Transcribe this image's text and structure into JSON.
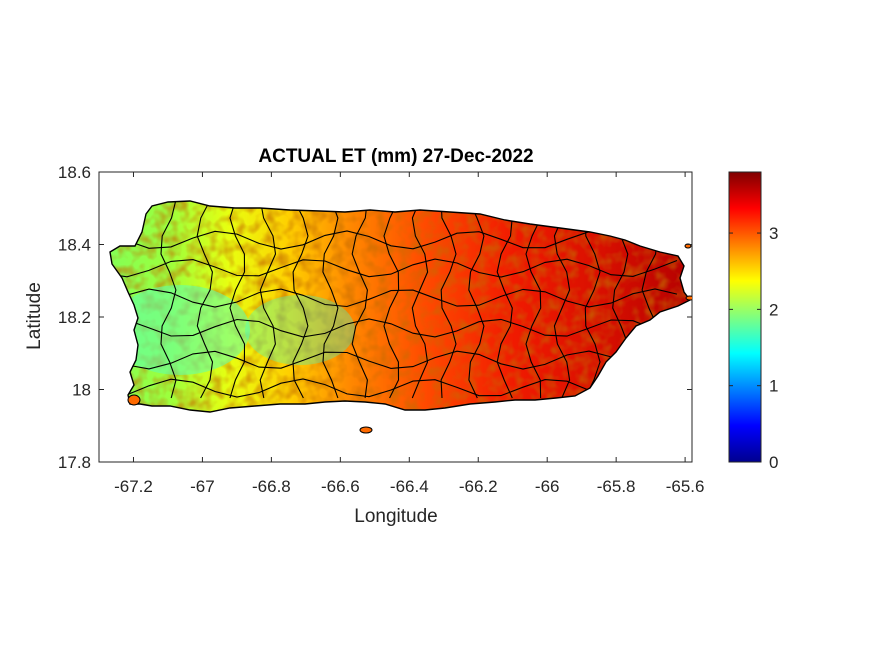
{
  "chart_data": {
    "type": "heatmap",
    "title": "ACTUAL ET (mm) 27-Dec-2022",
    "xlabel": "Longitude",
    "ylabel": "Latitude",
    "xlim": [
      -67.3,
      -65.58
    ],
    "ylim": [
      17.8,
      18.6
    ],
    "xticks": [
      -67.2,
      -67,
      -66.8,
      -66.6,
      -66.4,
      -66.2,
      -66,
      -65.8,
      -65.6
    ],
    "xtick_labels": [
      "-67.2",
      "-67",
      "-66.8",
      "-66.6",
      "-66.4",
      "-66.2",
      "-66",
      "-65.8",
      "-65.6"
    ],
    "yticks": [
      17.8,
      18,
      18.2,
      18.4,
      18.6
    ],
    "ytick_labels": [
      "17.8",
      "18",
      "18.2",
      "18.4",
      "18.6"
    ],
    "colorbar": {
      "colormap": "jet",
      "range": [
        0,
        3.8
      ],
      "ticks": [
        0,
        1,
        2,
        3
      ],
      "tick_labels": [
        "0",
        "1",
        "2",
        "3"
      ]
    },
    "grid": false,
    "colors": {
      "low": "#00008f",
      "mid": "#7fff7f",
      "high": "#800000",
      "boundary": "#000000"
    }
  }
}
